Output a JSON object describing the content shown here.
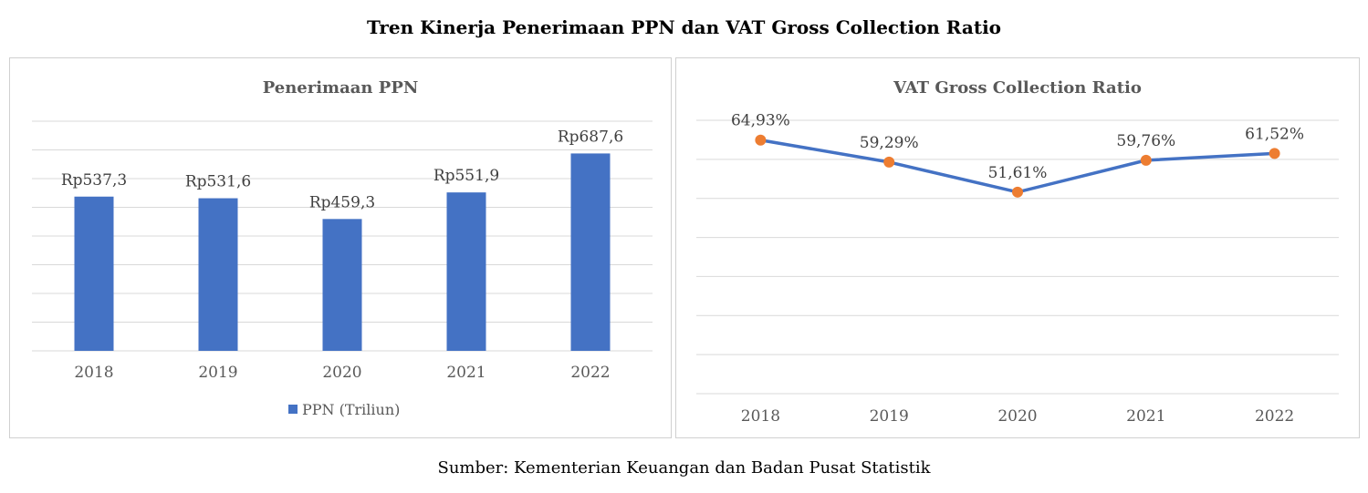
{
  "title": "Tren Kinerja Penerimaan PPN dan VAT Gross Collection Ratio",
  "source": "Sumber: Kementerian Keuangan dan Badan Pusat Statistik",
  "colors": {
    "bar": "#4472C4",
    "line": "#4472C4",
    "marker": "#ED7D31",
    "grid": "#d9d9d9"
  },
  "chart_data": [
    {
      "type": "bar",
      "title": "Penerimaan PPN",
      "categories": [
        "2018",
        "2019",
        "2020",
        "2021",
        "2022"
      ],
      "series": [
        {
          "name": "PPN (Triliun)",
          "values": [
            537.3,
            531.6,
            459.3,
            551.9,
            687.6
          ],
          "labels": [
            "Rp537,3",
            "Rp531,6",
            "Rp459,3",
            "Rp551,9",
            "Rp687,6"
          ]
        }
      ],
      "ylim": [
        0,
        800
      ],
      "grid": true,
      "legend": "bottom"
    },
    {
      "type": "line",
      "title": "VAT Gross Collection Ratio",
      "categories": [
        "2018",
        "2019",
        "2020",
        "2021",
        "2022"
      ],
      "series": [
        {
          "values": [
            64.93,
            59.29,
            51.61,
            59.76,
            61.52
          ],
          "labels": [
            "64,93%",
            "59,29%",
            "51,61%",
            "59,76%",
            "61,52%"
          ]
        }
      ],
      "ylim": [
        0,
        70
      ],
      "grid": true
    }
  ]
}
